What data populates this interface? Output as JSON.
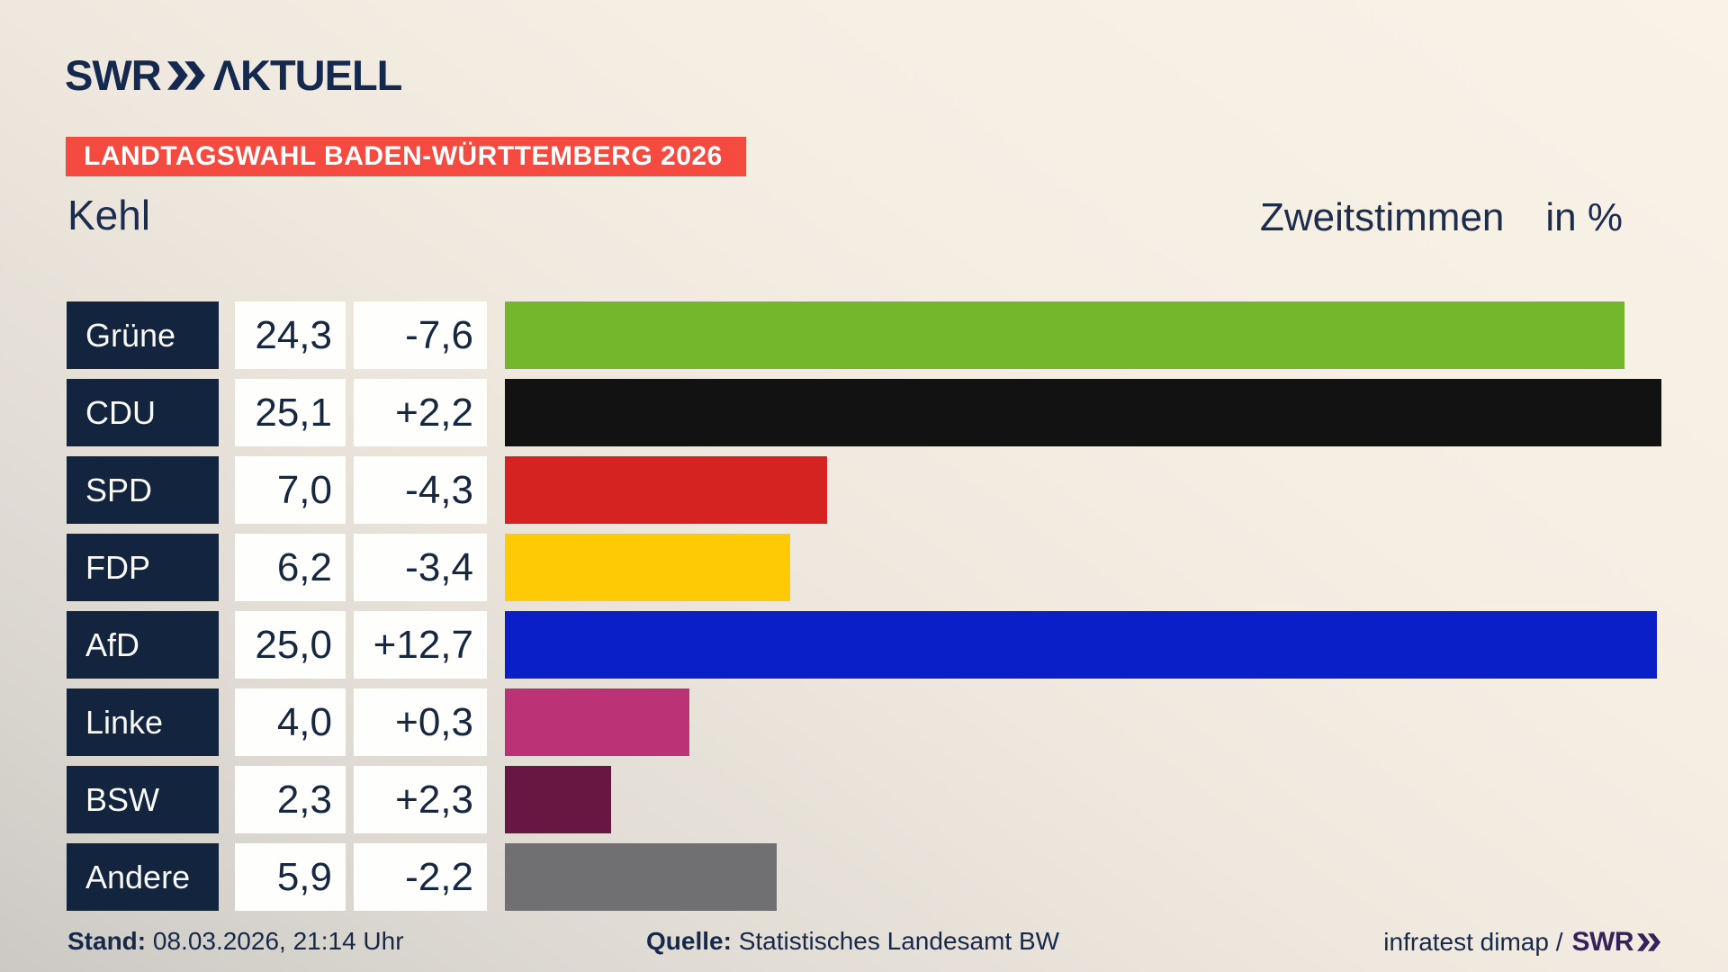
{
  "header": {
    "logo_swr": "SWR",
    "logo_aktuell": "ΛKTUELL",
    "banner": "LANDTAGSWAHL BADEN-WÜRTTEMBERG 2026",
    "region": "Kehl",
    "title_main": "Zweitstimmen",
    "title_unit": "in %"
  },
  "chart_data": {
    "type": "bar",
    "orientation": "horizontal",
    "title": "Zweitstimmen in %",
    "unit": "%",
    "max_value": 25.1,
    "axis_hidden": true,
    "legend": "none",
    "categories": [
      "Grüne",
      "CDU",
      "SPD",
      "FDP",
      "AfD",
      "Linke",
      "BSW",
      "Andere"
    ],
    "values": [
      24.3,
      25.1,
      7.0,
      6.2,
      25.0,
      4.0,
      2.3,
      5.9
    ],
    "value_labels": [
      "24,3",
      "25,1",
      "7,0",
      "6,2",
      "25,0",
      "4,0",
      "2,3",
      "5,9"
    ],
    "changes": [
      "-7,6",
      "+2,2",
      "-4,3",
      "-3,4",
      "+12,7",
      "+0,3",
      "+2,3",
      "-2,2"
    ],
    "colors": [
      "#74b62c",
      "#121212",
      "#d42320",
      "#fdca05",
      "#0b1fc9",
      "#bc3276",
      "#671741",
      "#707073"
    ]
  },
  "footer": {
    "stand_label": "Stand:",
    "stand_value": "08.03.2026, 21:14 Uhr",
    "source_label": "Quelle:",
    "source_value": "Statistisches Landesamt BW",
    "credit_text": "infratest dimap /",
    "credit_logo": "SWR"
  },
  "theme": {
    "background_top_right": "#f9f2e7",
    "background_bottom_left": "#ccc9c4",
    "navy": "#12243e",
    "banner_red": "#f54a3f",
    "cell_white": "#fefefd",
    "credit_logo_color": "#32235a"
  }
}
